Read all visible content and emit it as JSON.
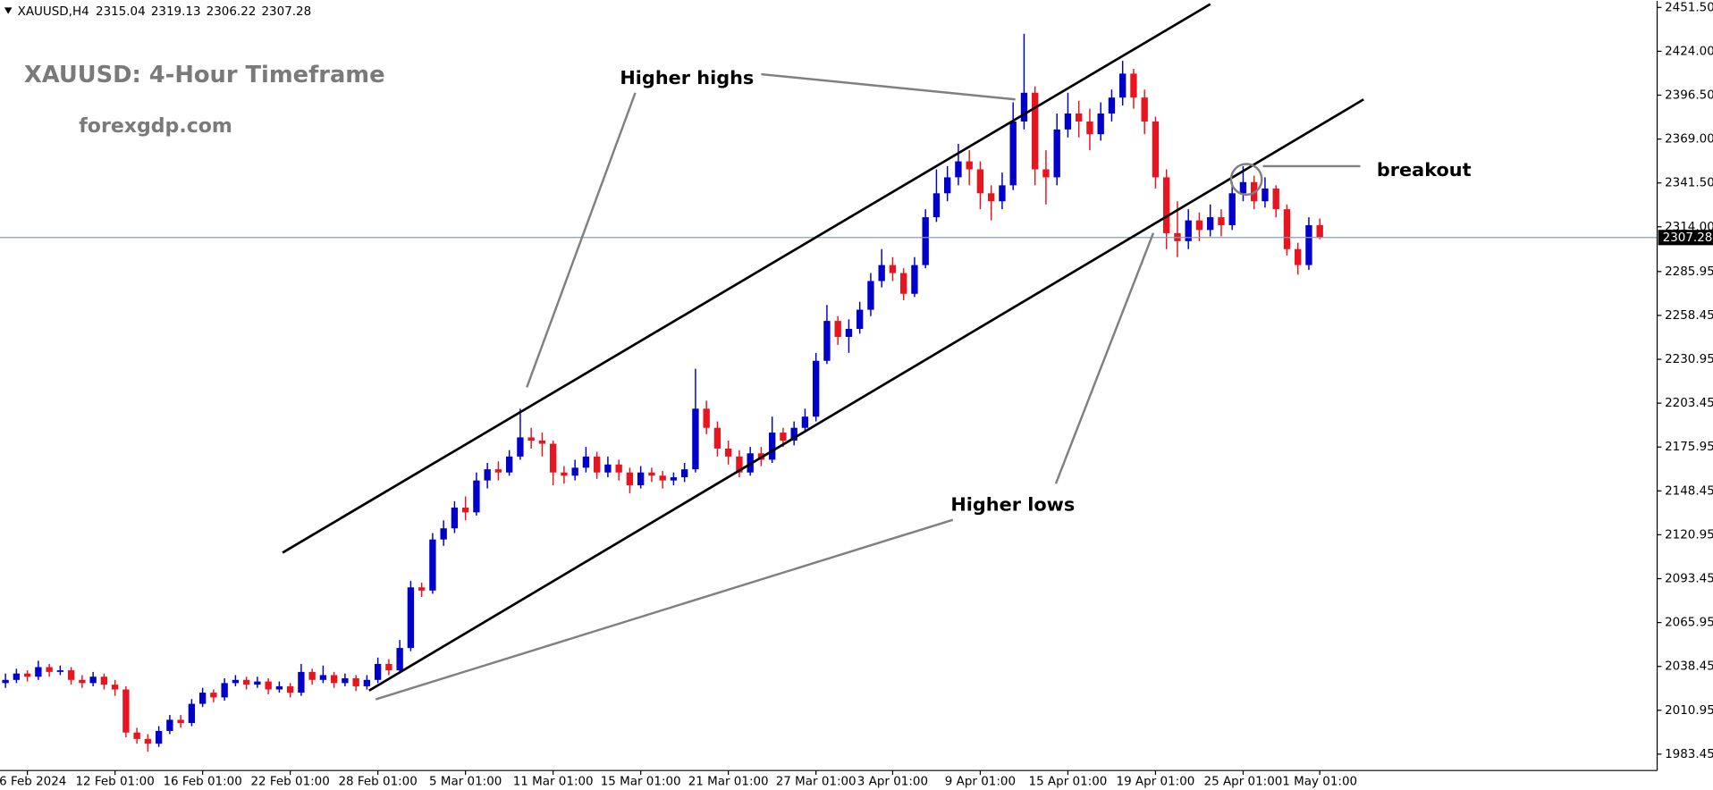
{
  "chart_data": {
    "type": "candlestick",
    "symbol": "XAUUSD,H4",
    "title": "XAUUSD: 4-Hour Timeframe",
    "subtitle": "forexgdp.com",
    "annotations": [
      "Higher highs",
      "Higher lows",
      "breakout"
    ],
    "up_color": "#0000cd",
    "down_color": "#e8141e",
    "price_line_color": "#8a9bb5",
    "grid": false,
    "ylim": [
      1973.2,
      2455.6
    ],
    "yticks": [
      1983.45,
      2010.95,
      2038.45,
      2065.95,
      2093.45,
      2120.95,
      2148.45,
      2175.95,
      2203.45,
      2230.95,
      2258.45,
      2285.95,
      {
        "value": 2314,
        "label": "2314.00"
      },
      {
        "value": 2341.5,
        "label": "2341.50"
      },
      {
        "value": 2369,
        "label": "2369.00"
      },
      {
        "value": 2396.5,
        "label": "2396.50"
      },
      {
        "value": 2424,
        "label": "2424.00"
      },
      {
        "value": 2451.5,
        "label": "2451.50"
      }
    ],
    "categories": [
      null,
      null,
      "6 Feb 2024",
      null,
      null,
      null,
      null,
      null,
      null,
      null,
      "12 Feb 01:00",
      null,
      null,
      null,
      null,
      null,
      null,
      null,
      "16 Feb 01:00",
      null,
      null,
      null,
      null,
      null,
      null,
      null,
      "22 Feb 01:00",
      null,
      null,
      null,
      null,
      null,
      null,
      null,
      "28 Feb 01:00",
      null,
      null,
      null,
      null,
      null,
      null,
      null,
      "5 Mar 01:00",
      null,
      null,
      null,
      null,
      null,
      null,
      null,
      "11 Mar 01:00",
      null,
      null,
      null,
      null,
      null,
      null,
      null,
      "15 Mar 01:00",
      null,
      null,
      null,
      null,
      null,
      null,
      null,
      "21 Mar 01:00",
      null,
      null,
      null,
      null,
      null,
      null,
      null,
      "27 Mar 01:00",
      null,
      null,
      null,
      null,
      null,
      null,
      "3 Apr 01:00",
      null,
      null,
      null,
      null,
      null,
      null,
      null,
      "9 Apr 01:00",
      null,
      null,
      null,
      null,
      null,
      null,
      null,
      "15 Apr 01:00",
      null,
      null,
      null,
      null,
      null,
      null,
      null,
      "19 Apr 01:00",
      null,
      null,
      null,
      null,
      null,
      null,
      null,
      "25 Apr 01:00",
      null,
      null,
      null,
      null,
      null,
      null,
      "1 May 01:00"
    ],
    "open": [
      2028,
      2030,
      2034,
      2032,
      2038,
      2035,
      2036,
      2030,
      2028,
      2032,
      2027,
      2024,
      1997,
      1993,
      1990,
      1998,
      2005,
      2003,
      2015,
      2022,
      2019,
      2028,
      2030,
      2027,
      2029,
      2024,
      2026,
      2022,
      2035,
      2030,
      2033,
      2028,
      2031,
      2026,
      2030,
      2040,
      2036,
      2050,
      2088,
      2086,
      2118,
      2125,
      2138,
      2135,
      2155,
      2162,
      2160,
      2170,
      2182,
      2180,
      2178,
      2160,
      2158,
      2163,
      2170,
      2160,
      2165,
      2160,
      2152,
      2160,
      2158,
      2155,
      2157,
      2162,
      2200,
      2188,
      2175,
      2170,
      2160,
      2172,
      2168,
      2185,
      2180,
      2188,
      2195,
      2230,
      2255,
      2245,
      2250,
      2262,
      2280,
      2290,
      2285,
      2272,
      2290,
      2320,
      2335,
      2345,
      2355,
      2350,
      2335,
      2330,
      2340,
      2380,
      2398,
      2350,
      2345,
      2375,
      2385,
      2380,
      2372,
      2385,
      2395,
      2410,
      2395,
      2380,
      2345,
      2310,
      2305,
      2318,
      2312,
      2320,
      2315,
      2335,
      2342,
      2330,
      2338,
      2325,
      2300,
      2290,
      2315.04
    ],
    "high": [
      2034,
      2037,
      2036,
      2042,
      2040,
      2039,
      2038,
      2033,
      2035,
      2034,
      2030,
      2026,
      2000,
      1996,
      2001,
      2008,
      2008,
      2018,
      2025,
      2024,
      2031,
      2033,
      2032,
      2032,
      2031,
      2029,
      2028,
      2040,
      2037,
      2039,
      2035,
      2034,
      2033,
      2033,
      2044,
      2043,
      2055,
      2092,
      2091,
      2122,
      2130,
      2142,
      2145,
      2160,
      2166,
      2167,
      2174,
      2200,
      2188,
      2185,
      2180,
      2164,
      2168,
      2176,
      2173,
      2170,
      2168,
      2163,
      2164,
      2163,
      2161,
      2160,
      2166,
      2225,
      2205,
      2192,
      2180,
      2174,
      2176,
      2176,
      2195,
      2188,
      2192,
      2200,
      2235,
      2265,
      2258,
      2256,
      2267,
      2285,
      2300,
      2295,
      2288,
      2295,
      2325,
      2350,
      2352,
      2366,
      2362,
      2355,
      2340,
      2348,
      2392,
      2435,
      2402,
      2362,
      2385,
      2398,
      2393,
      2388,
      2392,
      2400,
      2418,
      2413,
      2400,
      2383,
      2350,
      2330,
      2325,
      2323,
      2328,
      2325,
      2342,
      2352,
      2346,
      2345,
      2340,
      2328,
      2304,
      2320,
      2319.13
    ],
    "low": [
      2025,
      2028,
      2029,
      2030,
      2032,
      2033,
      2027,
      2025,
      2026,
      2024,
      2020,
      1994,
      1990,
      1985,
      1988,
      1996,
      2000,
      2001,
      2013,
      2016,
      2017,
      2026,
      2024,
      2025,
      2021,
      2022,
      2019,
      2020,
      2027,
      2028,
      2025,
      2026,
      2023,
      2024,
      2028,
      2033,
      2034,
      2048,
      2082,
      2084,
      2114,
      2122,
      2130,
      2133,
      2150,
      2155,
      2158,
      2168,
      2175,
      2170,
      2152,
      2153,
      2155,
      2160,
      2156,
      2157,
      2155,
      2147,
      2150,
      2154,
      2150,
      2152,
      2154,
      2160,
      2184,
      2170,
      2165,
      2157,
      2158,
      2164,
      2166,
      2176,
      2177,
      2185,
      2192,
      2228,
      2240,
      2235,
      2247,
      2258,
      2276,
      2280,
      2268,
      2270,
      2288,
      2317,
      2330,
      2340,
      2340,
      2325,
      2318,
      2325,
      2337,
      2375,
      2340,
      2328,
      2340,
      2370,
      2370,
      2362,
      2368,
      2380,
      2390,
      2388,
      2372,
      2338,
      2300,
      2295,
      2300,
      2305,
      2308,
      2308,
      2312,
      2330,
      2325,
      2326,
      2320,
      2296,
      2284,
      2287,
      2306.22
    ],
    "close": [
      2030,
      2034,
      2032,
      2038,
      2035,
      2036,
      2030,
      2028,
      2032,
      2027,
      2024,
      1997,
      1993,
      1990,
      1998,
      2005,
      2003,
      2015,
      2022,
      2019,
      2028,
      2030,
      2027,
      2029,
      2024,
      2026,
      2022,
      2035,
      2030,
      2033,
      2028,
      2031,
      2026,
      2030,
      2040,
      2036,
      2050,
      2088,
      2086,
      2118,
      2125,
      2138,
      2135,
      2155,
      2162,
      2160,
      2170,
      2182,
      2180,
      2178,
      2160,
      2158,
      2163,
      2170,
      2160,
      2165,
      2160,
      2152,
      2160,
      2158,
      2155,
      2157,
      2162,
      2200,
      2188,
      2175,
      2170,
      2160,
      2172,
      2168,
      2185,
      2180,
      2188,
      2195,
      2230,
      2255,
      2245,
      2250,
      2262,
      2280,
      2290,
      2285,
      2272,
      2290,
      2320,
      2335,
      2345,
      2355,
      2350,
      2335,
      2330,
      2340,
      2380,
      2398,
      2350,
      2345,
      2375,
      2385,
      2380,
      2372,
      2385,
      2395,
      2410,
      2395,
      2380,
      2345,
      2310,
      2305,
      2318,
      2312,
      2320,
      2315,
      2335,
      2342,
      2330,
      2338,
      2325,
      2300,
      2290,
      2315,
      2307.28
    ]
  }
}
